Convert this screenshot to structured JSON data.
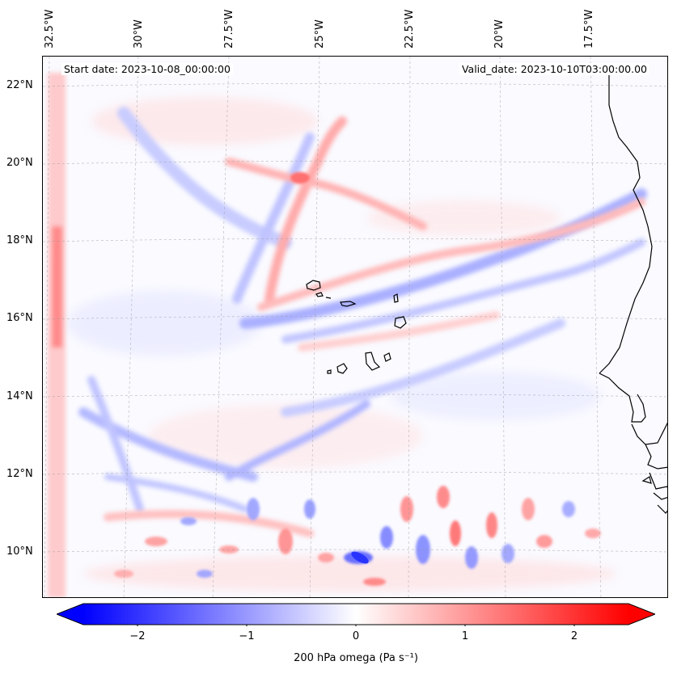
{
  "annotations": {
    "start": "Start date: 2023-10-08_00:00:00",
    "valid": "Valid_date: 2023-10-10T03:00:00.00"
  },
  "lon_labels": [
    "32.5°W",
    "30°W",
    "27.5°W",
    "25°W",
    "22.5°W",
    "20°W",
    "17.5°W"
  ],
  "lat_labels": [
    "22°N",
    "20°N",
    "18°N",
    "16°N",
    "14°N",
    "12°N",
    "10°N"
  ],
  "colorbar": {
    "ticks": [
      "−2",
      "−1",
      "0",
      "1",
      "2"
    ],
    "tick_values": [
      -2,
      -1,
      0,
      1,
      2
    ],
    "range": [
      -2.5,
      2.5
    ],
    "label": "200 hPa omega (Pa s⁻¹)",
    "low_color": "#0000ff",
    "mid_color": "#ffffff",
    "high_color": "#ff0000"
  }
}
